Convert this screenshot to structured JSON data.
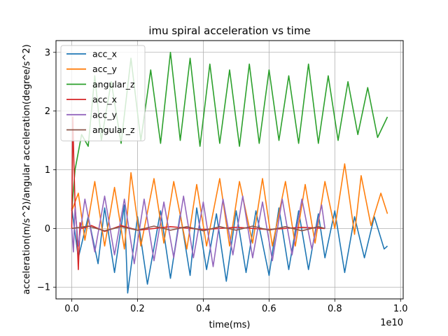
{
  "chart_data": {
    "type": "line",
    "title": "imu spiral acceleration vs time",
    "xlabel": "time(ms)",
    "ylabel": "acceleration(m/s^2)/angular acceleration(degree/s^2)",
    "x_offset_text": "1e10",
    "x_scale": 10000000000,
    "xlim": [
      -0.048,
      1.008
    ],
    "ylim": [
      -1.2,
      3.2
    ],
    "xticks": [
      0.0,
      0.2,
      0.4,
      0.6,
      0.8,
      1.0
    ],
    "xtick_labels": [
      "0.0",
      "0.2",
      "0.4",
      "0.6",
      "0.8",
      "1.0"
    ],
    "yticks": [
      -1,
      0,
      1,
      2,
      3
    ],
    "ytick_labels": [
      "−1",
      "0",
      "1",
      "2",
      "3"
    ],
    "grid": true,
    "legend_position": "top-left",
    "series": [
      {
        "name": "acc_x",
        "color": "#1f77b4",
        "x": [
          0.0,
          0.02,
          0.05,
          0.08,
          0.1,
          0.13,
          0.16,
          0.17,
          0.2,
          0.23,
          0.27,
          0.3,
          0.33,
          0.36,
          0.38,
          0.41,
          0.44,
          0.47,
          0.5,
          0.53,
          0.56,
          0.6,
          0.63,
          0.66,
          0.69,
          0.72,
          0.75,
          0.77,
          0.8,
          0.83,
          0.86,
          0.89,
          0.92,
          0.95,
          0.96
        ],
        "y": [
          0.35,
          -0.5,
          0.2,
          -0.6,
          0.35,
          -0.75,
          0.4,
          -1.1,
          0.2,
          -0.95,
          0.3,
          -0.85,
          0.25,
          -0.8,
          0.35,
          -0.7,
          0.25,
          -0.9,
          0.3,
          -0.75,
          0.3,
          -0.8,
          0.35,
          -0.7,
          0.3,
          -0.7,
          0.25,
          -0.5,
          0.3,
          -0.75,
          0.2,
          -0.5,
          0.2,
          -0.35,
          -0.3
        ]
      },
      {
        "name": "acc_y",
        "color": "#ff7f0e",
        "x": [
          0.0,
          0.02,
          0.04,
          0.07,
          0.1,
          0.13,
          0.16,
          0.18,
          0.21,
          0.25,
          0.28,
          0.31,
          0.35,
          0.38,
          0.41,
          0.45,
          0.48,
          0.51,
          0.55,
          0.58,
          0.61,
          0.65,
          0.68,
          0.71,
          0.74,
          0.77,
          0.8,
          0.83,
          0.86,
          0.88,
          0.91,
          0.94,
          0.96
        ],
        "y": [
          0.3,
          0.6,
          -0.2,
          0.8,
          -0.3,
          0.7,
          -0.35,
          0.95,
          -0.3,
          0.85,
          -0.25,
          0.8,
          -0.35,
          0.75,
          -0.3,
          0.85,
          -0.3,
          0.8,
          -0.25,
          0.85,
          -0.3,
          0.8,
          -0.3,
          0.75,
          -0.25,
          0.8,
          0.0,
          1.1,
          -0.1,
          0.9,
          0.05,
          0.6,
          0.25
        ]
      },
      {
        "name": "angular_z",
        "color": "#2ca02c",
        "x": [
          0.0,
          0.01,
          0.03,
          0.05,
          0.07,
          0.09,
          0.12,
          0.15,
          0.18,
          0.21,
          0.24,
          0.27,
          0.3,
          0.33,
          0.36,
          0.39,
          0.42,
          0.45,
          0.48,
          0.51,
          0.54,
          0.57,
          0.6,
          0.63,
          0.66,
          0.69,
          0.72,
          0.75,
          0.78,
          0.81,
          0.84,
          0.87,
          0.9,
          0.93,
          0.96
        ],
        "y": [
          0.3,
          1.0,
          1.6,
          1.4,
          2.6,
          1.5,
          2.5,
          1.45,
          2.9,
          1.5,
          2.7,
          1.45,
          3.0,
          1.5,
          2.9,
          1.4,
          2.8,
          1.45,
          2.7,
          1.4,
          2.8,
          1.45,
          2.7,
          1.5,
          2.6,
          1.45,
          2.8,
          1.45,
          2.6,
          1.5,
          2.5,
          1.6,
          2.4,
          1.55,
          1.9
        ]
      },
      {
        "name": "acc_x",
        "color": "#d62728",
        "x": [
          0.0,
          0.003,
          0.006,
          0.01,
          0.015,
          0.02,
          0.025,
          0.03,
          0.06,
          0.1,
          0.15,
          0.2,
          0.3,
          0.4,
          0.5,
          0.6,
          0.7,
          0.77
        ],
        "y": [
          0.0,
          1.9,
          1.2,
          0.4,
          0.0,
          -0.7,
          0.1,
          0.0,
          0.05,
          -0.05,
          0.05,
          -0.03,
          0.03,
          -0.02,
          0.02,
          -0.02,
          0.02,
          0.0
        ]
      },
      {
        "name": "acc_y",
        "color": "#9467bd",
        "x": [
          0.0,
          0.005,
          0.01,
          0.02,
          0.04,
          0.07,
          0.1,
          0.13,
          0.16,
          0.19,
          0.22,
          0.25,
          0.28,
          0.31,
          0.34,
          0.37,
          0.4,
          0.43,
          0.46,
          0.49,
          0.52,
          0.55,
          0.58,
          0.61,
          0.64,
          0.67,
          0.7,
          0.73,
          0.76,
          0.77
        ],
        "y": [
          0.0,
          -0.4,
          0.35,
          -0.3,
          0.5,
          -0.4,
          0.55,
          -0.45,
          0.5,
          -0.6,
          0.5,
          -0.55,
          0.45,
          -0.5,
          0.55,
          -0.5,
          0.45,
          -0.65,
          0.5,
          -0.45,
          0.55,
          -0.5,
          0.45,
          -0.55,
          0.5,
          -0.45,
          0.5,
          -0.35,
          0.4,
          0.0
        ]
      },
      {
        "name": "angular_z",
        "color": "#8c564b",
        "x": [
          0.0,
          0.05,
          0.1,
          0.15,
          0.2,
          0.25,
          0.3,
          0.35,
          0.4,
          0.45,
          0.5,
          0.55,
          0.6,
          0.65,
          0.7,
          0.75,
          0.77
        ],
        "y": [
          0.0,
          0.04,
          -0.04,
          0.03,
          -0.03,
          0.04,
          -0.03,
          0.03,
          -0.04,
          0.03,
          -0.03,
          0.04,
          -0.03,
          0.03,
          -0.04,
          0.03,
          0.0
        ]
      }
    ]
  }
}
